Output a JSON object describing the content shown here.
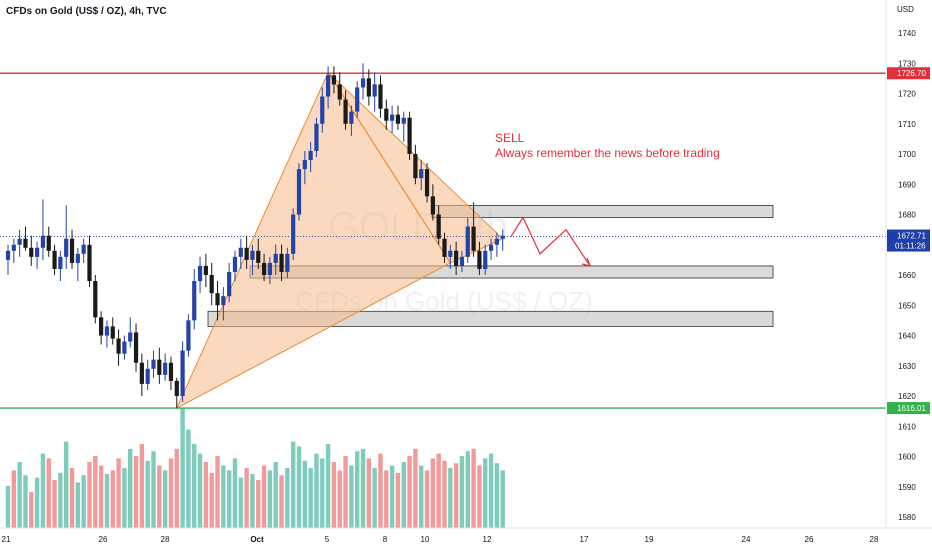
{
  "header": {
    "symbol_title": "CFDs on Gold (US$ / OZ), 4h, TVC"
  },
  "watermark": {
    "ticker": "GOLD, 4h",
    "description": "CFDs on Gold (US$ / OZ)"
  },
  "annotation": {
    "signal": "SELL",
    "note": "Always remember the news before trading"
  },
  "colors": {
    "up": "#2343a8",
    "down": "#1a1a1a",
    "volume_up": "#7fcbbd",
    "volume_down": "#f29a9a",
    "resistance": "#e0303a",
    "support": "#33b14a",
    "pattern_fill": "#f5b98a",
    "pattern_stroke": "#ee8a30",
    "arrow": "#e0303a",
    "last_price": "#1f3fa8"
  },
  "chart_data": {
    "type": "candlestick",
    "title": "CFDs on Gold (US$ / OZ), 4h, TVC",
    "currency_label": "USD",
    "ylim": [
      1575,
      1745
    ],
    "y_ticks": [
      1580,
      1590,
      1600,
      1610,
      1620,
      1630,
      1640,
      1650,
      1660,
      1670,
      1680,
      1690,
      1700,
      1710,
      1720,
      1730,
      1740
    ],
    "x_tick_labels": [
      "21",
      "26",
      "28",
      "Oct",
      "5",
      "8",
      "10",
      "12",
      "17",
      "19",
      "24",
      "26",
      "28"
    ],
    "reference_lines": [
      {
        "name": "resistance",
        "value": 1726.7,
        "label": "1726.70"
      },
      {
        "name": "support",
        "value": 1616.01,
        "label": "1616.01"
      }
    ],
    "last_price": {
      "value": 1672.71,
      "label": "1672.71",
      "countdown": "01:11:26"
    },
    "zones": [
      {
        "low": 1679,
        "high": 1683
      },
      {
        "low": 1659,
        "high": 1663
      },
      {
        "low": 1643,
        "high": 1648
      }
    ],
    "harmonic_pattern": [
      1616,
      1727,
      1664,
      1672
    ],
    "projection_path": [
      1672.71,
      1679,
      1667,
      1675,
      1663
    ],
    "candles": [
      [
        1665,
        1670,
        1660,
        1668
      ],
      [
        1668,
        1672,
        1664,
        1670
      ],
      [
        1670,
        1675,
        1666,
        1672
      ],
      [
        1672,
        1676,
        1668,
        1669
      ],
      [
        1669,
        1673,
        1663,
        1666
      ],
      [
        1666,
        1671,
        1662,
        1669
      ],
      [
        1669,
        1685,
        1665,
        1673
      ],
      [
        1673,
        1676,
        1666,
        1668
      ],
      [
        1668,
        1670,
        1660,
        1662
      ],
      [
        1662,
        1668,
        1658,
        1666
      ],
      [
        1666,
        1683,
        1662,
        1672
      ],
      [
        1672,
        1675,
        1662,
        1664
      ],
      [
        1664,
        1669,
        1658,
        1667
      ],
      [
        1667,
        1672,
        1664,
        1670
      ],
      [
        1670,
        1673,
        1656,
        1658
      ],
      [
        1658,
        1660,
        1644,
        1646
      ],
      [
        1646,
        1648,
        1637,
        1640
      ],
      [
        1640,
        1645,
        1636,
        1643
      ],
      [
        1643,
        1646,
        1637,
        1639
      ],
      [
        1639,
        1642,
        1630,
        1634
      ],
      [
        1634,
        1640,
        1632,
        1638
      ],
      [
        1638,
        1646,
        1636,
        1641
      ],
      [
        1641,
        1644,
        1628,
        1631
      ],
      [
        1631,
        1634,
        1620,
        1624
      ],
      [
        1624,
        1632,
        1622,
        1629
      ],
      [
        1629,
        1635,
        1626,
        1632
      ],
      [
        1632,
        1636,
        1624,
        1627
      ],
      [
        1627,
        1634,
        1625,
        1631
      ],
      [
        1631,
        1633,
        1622,
        1625
      ],
      [
        1625,
        1626,
        1616,
        1620
      ],
      [
        1620,
        1638,
        1618,
        1635
      ],
      [
        1635,
        1647,
        1633,
        1645
      ],
      [
        1645,
        1662,
        1642,
        1658
      ],
      [
        1658,
        1666,
        1654,
        1663
      ],
      [
        1663,
        1667,
        1656,
        1660
      ],
      [
        1660,
        1664,
        1650,
        1654
      ],
      [
        1654,
        1658,
        1645,
        1650
      ],
      [
        1650,
        1656,
        1645,
        1653
      ],
      [
        1653,
        1664,
        1651,
        1661
      ],
      [
        1661,
        1668,
        1658,
        1666
      ],
      [
        1666,
        1672,
        1662,
        1669
      ],
      [
        1669,
        1673,
        1662,
        1665
      ],
      [
        1665,
        1670,
        1660,
        1668
      ],
      [
        1668,
        1672,
        1662,
        1664
      ],
      [
        1664,
        1667,
        1658,
        1660
      ],
      [
        1660,
        1666,
        1657,
        1664
      ],
      [
        1664,
        1670,
        1660,
        1667
      ],
      [
        1667,
        1670,
        1658,
        1661
      ],
      [
        1661,
        1669,
        1659,
        1667
      ],
      [
        1667,
        1682,
        1665,
        1680
      ],
      [
        1680,
        1697,
        1678,
        1695
      ],
      [
        1695,
        1701,
        1690,
        1698
      ],
      [
        1698,
        1704,
        1694,
        1701
      ],
      [
        1701,
        1712,
        1699,
        1710
      ],
      [
        1710,
        1722,
        1707,
        1719
      ],
      [
        1719,
        1729,
        1715,
        1726
      ],
      [
        1726,
        1729,
        1720,
        1723
      ],
      [
        1723,
        1727,
        1716,
        1718
      ],
      [
        1718,
        1721,
        1708,
        1710
      ],
      [
        1710,
        1716,
        1706,
        1714
      ],
      [
        1714,
        1724,
        1712,
        1722
      ],
      [
        1722,
        1730,
        1718,
        1725
      ],
      [
        1725,
        1728,
        1716,
        1719
      ],
      [
        1719,
        1727,
        1714,
        1723
      ],
      [
        1723,
        1726,
        1712,
        1715
      ],
      [
        1715,
        1718,
        1708,
        1711
      ],
      [
        1711,
        1716,
        1707,
        1713
      ],
      [
        1713,
        1716,
        1708,
        1710
      ],
      [
        1710,
        1714,
        1704,
        1712
      ],
      [
        1712,
        1714,
        1698,
        1700
      ],
      [
        1700,
        1703,
        1690,
        1692
      ],
      [
        1692,
        1698,
        1688,
        1695
      ],
      [
        1695,
        1697,
        1684,
        1686
      ],
      [
        1686,
        1690,
        1678,
        1680
      ],
      [
        1680,
        1683,
        1670,
        1672
      ],
      [
        1672,
        1674,
        1664,
        1666
      ],
      [
        1666,
        1670,
        1662,
        1668
      ],
      [
        1668,
        1671,
        1660,
        1663
      ],
      [
        1663,
        1668,
        1661,
        1666
      ],
      [
        1666,
        1679,
        1664,
        1676
      ],
      [
        1676,
        1684,
        1666,
        1668
      ],
      [
        1668,
        1671,
        1660,
        1662
      ],
      [
        1662,
        1670,
        1660,
        1668
      ],
      [
        1668,
        1672,
        1665,
        1670
      ],
      [
        1670,
        1674,
        1666,
        1672
      ],
      [
        1672,
        1675,
        1668,
        1673
      ]
    ],
    "volumes": [
      0.35,
      0.48,
      0.55,
      0.44,
      0.3,
      0.42,
      0.62,
      0.58,
      0.4,
      0.46,
      0.72,
      0.5,
      0.38,
      0.44,
      0.55,
      0.6,
      0.52,
      0.45,
      0.48,
      0.58,
      0.5,
      0.66,
      0.6,
      0.7,
      0.56,
      0.64,
      0.52,
      0.48,
      0.58,
      0.66,
      1.0,
      0.82,
      0.7,
      0.62,
      0.55,
      0.46,
      0.6,
      0.52,
      0.48,
      0.58,
      0.42,
      0.5,
      0.45,
      0.4,
      0.52,
      0.48,
      0.55,
      0.44,
      0.5,
      0.72,
      0.68,
      0.56,
      0.5,
      0.62,
      0.58,
      0.7,
      0.55,
      0.48,
      0.6,
      0.52,
      0.64,
      0.66,
      0.58,
      0.5,
      0.62,
      0.48,
      0.52,
      0.46,
      0.55,
      0.6,
      0.66,
      0.52,
      0.48,
      0.58,
      0.62,
      0.56,
      0.5,
      0.54,
      0.6,
      0.64,
      0.66,
      0.52,
      0.58,
      0.62,
      0.54,
      0.48
    ],
    "volume_colors": [
      "up",
      "down",
      "up",
      "up",
      "down",
      "up",
      "up",
      "down",
      "down",
      "up",
      "up",
      "down",
      "up",
      "up",
      "down",
      "down",
      "down",
      "up",
      "down",
      "down",
      "up",
      "up",
      "down",
      "down",
      "up",
      "up",
      "down",
      "up",
      "down",
      "down",
      "up",
      "up",
      "up",
      "up",
      "down",
      "down",
      "down",
      "up",
      "up",
      "up",
      "up",
      "down",
      "up",
      "down",
      "down",
      "up",
      "up",
      "down",
      "up",
      "up",
      "up",
      "up",
      "up",
      "up",
      "up",
      "up",
      "down",
      "down",
      "down",
      "up",
      "up",
      "up",
      "down",
      "up",
      "down",
      "down",
      "up",
      "down",
      "up",
      "down",
      "down",
      "up",
      "down",
      "down",
      "down",
      "down",
      "up",
      "down",
      "up",
      "up",
      "down",
      "down",
      "up",
      "up",
      "up",
      "up"
    ]
  }
}
